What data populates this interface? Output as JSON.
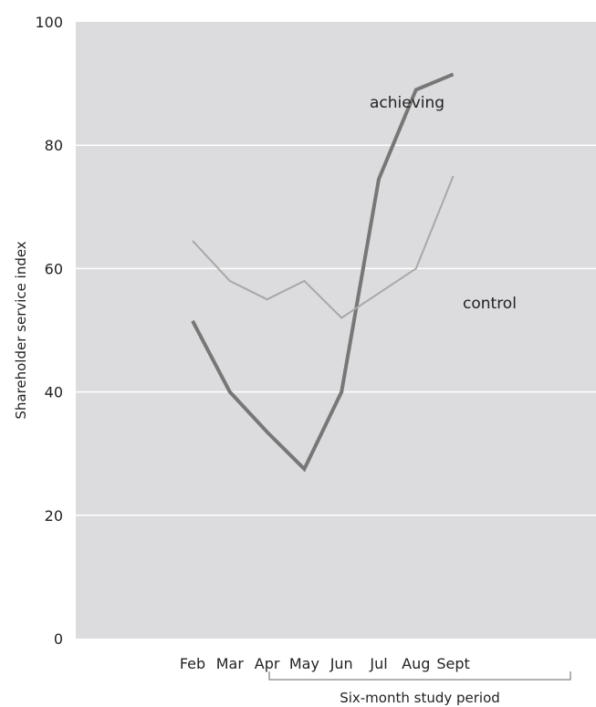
{
  "chart_data": {
    "type": "line",
    "categories": [
      "Feb",
      "Mar",
      "Apr",
      "May",
      "Jun",
      "Jul",
      "Aug",
      "Sept"
    ],
    "ylabel": "Shareholder service index",
    "xlabel": "Six-month study period",
    "ylim": [
      0,
      100
    ],
    "yticks": [
      0,
      20,
      40,
      60,
      80,
      100
    ],
    "grid": true,
    "background": "#dcdcde",
    "series": [
      {
        "name": "achieving",
        "color": "#777777",
        "values": [
          51.5,
          40,
          33.5,
          27.5,
          40,
          74.5,
          89,
          91.5
        ]
      },
      {
        "name": "control",
        "color": "#a8a8a8",
        "values": [
          64.5,
          58,
          55,
          58,
          52,
          56,
          60,
          75
        ]
      }
    ]
  }
}
